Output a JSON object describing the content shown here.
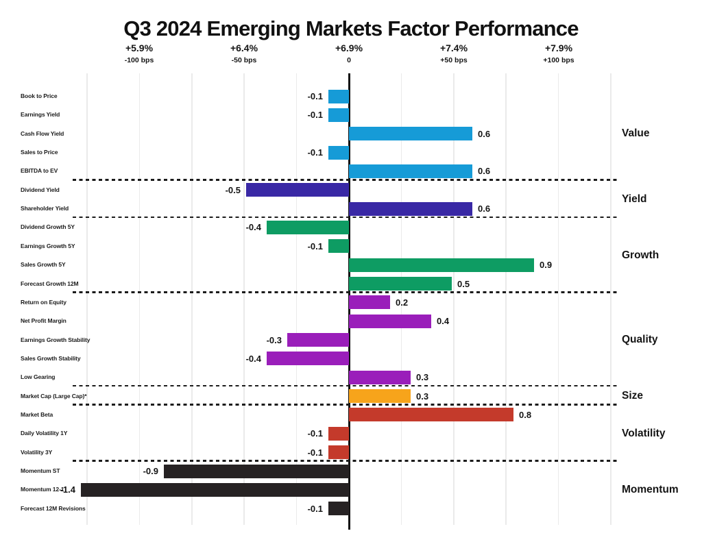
{
  "page": {
    "background": "#ffffff"
  },
  "chart_data": {
    "type": "bar",
    "orientation": "horizontal",
    "title": "Q3 2024 Emerging Markets Factor Performance",
    "x_axis": {
      "ticks": [
        {
          "pct": "+5.9%",
          "bps": "-100 bps",
          "value_bps": -100
        },
        {
          "pct": "+6.4%",
          "bps": "-50 bps",
          "value_bps": -50
        },
        {
          "pct": "+6.9%",
          "bps": "0",
          "value_bps": 0
        },
        {
          "pct": "+7.4%",
          "bps": "+50 bps",
          "value_bps": 50
        },
        {
          "pct": "+7.9%",
          "bps": "+100 bps",
          "value_bps": 100
        }
      ],
      "range_bps": [
        -125,
        125
      ],
      "gridlines_every_bps": 25,
      "grid": true
    },
    "value_unit": "percentage points (1.0 = 100 bps)",
    "legend_position": "right-group-labels",
    "groups": [
      {
        "name": "Value",
        "color": "#169bd7",
        "factors": [
          {
            "label": "Book to Price",
            "value": -0.1
          },
          {
            "label": "Earnings Yield",
            "value": -0.1
          },
          {
            "label": "Cash Flow Yield",
            "value": 0.6
          },
          {
            "label": "Sales to Price",
            "value": -0.1
          },
          {
            "label": "EBITDA to EV",
            "value": 0.6
          }
        ]
      },
      {
        "name": "Yield",
        "color": "#3928a5",
        "factors": [
          {
            "label": "Dividend Yield",
            "value": -0.5
          },
          {
            "label": "Shareholder Yield",
            "value": 0.6
          }
        ]
      },
      {
        "name": "Growth",
        "color": "#0e9c63",
        "factors": [
          {
            "label": "Dividend Growth 5Y",
            "value": -0.4
          },
          {
            "label": "Earnings Growth 5Y",
            "value": -0.1
          },
          {
            "label": "Sales Growth 5Y",
            "value": 0.9
          },
          {
            "label": "Forecast Growth 12M",
            "value": 0.5
          }
        ]
      },
      {
        "name": "Quality",
        "color": "#9a1eba",
        "factors": [
          {
            "label": "Return on Equity",
            "value": 0.2
          },
          {
            "label": "Net Profit Margin",
            "value": 0.4
          },
          {
            "label": "Earnings Growth Stability",
            "value": -0.3
          },
          {
            "label": "Sales Growth Stability",
            "value": -0.4
          },
          {
            "label": "Low Gearing",
            "value": 0.3
          }
        ]
      },
      {
        "name": "Size",
        "color": "#f7a41b",
        "factors": [
          {
            "label": "Market Cap (Large Cap)*",
            "value": 0.3
          }
        ]
      },
      {
        "name": "Volatility",
        "color": "#c43a2b",
        "factors": [
          {
            "label": "Market Beta",
            "value": 0.8
          },
          {
            "label": "Daily Volatility 1Y",
            "value": -0.1
          },
          {
            "label": "Volatility 3Y",
            "value": -0.1
          }
        ]
      },
      {
        "name": "Momentum",
        "color": "#262223",
        "factors": [
          {
            "label": "Momentum ST",
            "value": -0.9
          },
          {
            "label": "Momentum 12-1",
            "value": -1.4
          },
          {
            "label": "Forecast 12M Revisions",
            "value": -0.1
          }
        ]
      }
    ]
  }
}
